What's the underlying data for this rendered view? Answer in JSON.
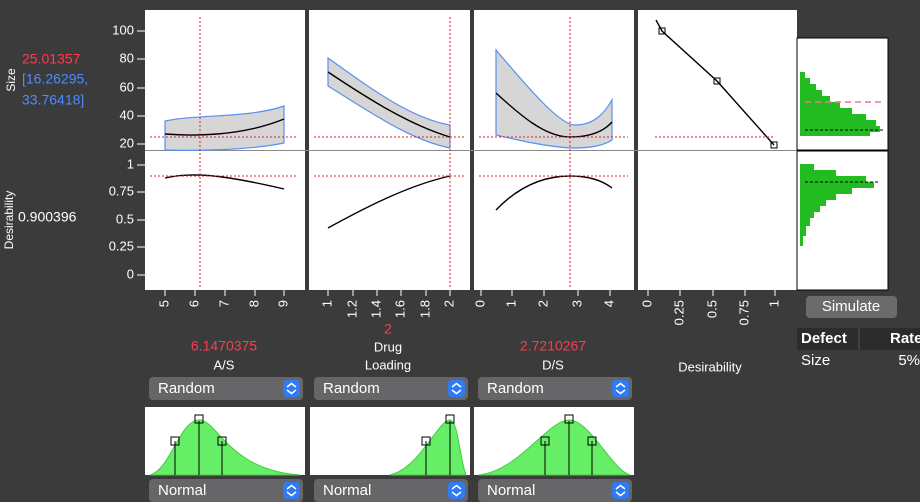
{
  "response": {
    "label": "Size",
    "value": "25.01357",
    "interval": [
      "[16.26295,",
      "33.76418]"
    ],
    "ticks": [
      "100",
      "80",
      "60",
      "40",
      "20"
    ]
  },
  "desirability": {
    "label": "Desirability",
    "value": "0.900396",
    "ticks": [
      "1",
      "0.75",
      "0.5",
      "0.25",
      "0"
    ],
    "axis_ticks": [
      "0",
      "0.25",
      "0.5",
      "0.75",
      "1"
    ]
  },
  "factors": [
    {
      "value": "6.1470375",
      "name": [
        "A/S"
      ],
      "ticks": [
        "5",
        "6",
        "7",
        "8",
        "9"
      ],
      "method": "Random",
      "distribution": "Normal"
    },
    {
      "value": "2",
      "name": [
        "Drug",
        "Loading"
      ],
      "ticks": [
        "1",
        "1.2",
        "1.4",
        "1.6",
        "1.8",
        "2"
      ],
      "method": "Random",
      "distribution": "Normal"
    },
    {
      "value": "2.7210267",
      "name": [
        "D/S"
      ],
      "ticks": [
        "0",
        "1",
        "2",
        "3",
        "4"
      ],
      "method": "Random",
      "distribution": "Normal"
    }
  ],
  "simulate": "Simulate",
  "table": {
    "header": [
      "Defect",
      "Rate"
    ],
    "rows": [
      [
        "Size",
        "5%"
      ]
    ]
  }
}
